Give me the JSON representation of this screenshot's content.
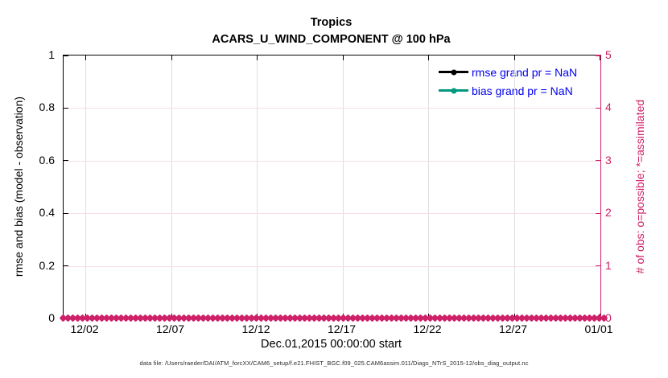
{
  "figure": {
    "title_line1": "Tropics",
    "title_line2": "ACARS_U_WIND_COMPONENT @ 100 hPa",
    "xlabel": "Dec.01,2015 00:00:00 start",
    "ylabel_left": "rmse and bias (model - observation)",
    "ylabel_right": "# of obs: o=possible; *=assimilated",
    "footer": "data file: /Users/raeder/DAI/ATM_forcXX/CAM6_setup/f.e21.FHIST_BGC.f09_025.CAM6assim.011/Diags_NTrS_2015-12/obs_diag_output.nc"
  },
  "legend": {
    "items": [
      {
        "label": "rmse grand pr = NaN",
        "line_color": "#000000"
      },
      {
        "label": "bias grand pr = NaN",
        "line_color": "#009980"
      }
    ],
    "text_color": "#0000EE"
  },
  "colors": {
    "accent_pink": "#CE2168",
    "teal": "#009980",
    "legend_text_blue": "#0000EE",
    "grid_vertical": "#DEDEDE",
    "grid_horizontal": "#F6DDE9",
    "axis_black": "#000000"
  },
  "chart_data": {
    "type": "line",
    "title": "Tropics",
    "subtitle": "ACARS_U_WIND_COMPONENT @ 100 hPa",
    "xlabel": "Dec.01,2015 00:00:00 start",
    "x_tick_labels": [
      "12/02",
      "12/07",
      "12/12",
      "12/17",
      "12/22",
      "12/27",
      "01/01"
    ],
    "y_left": {
      "label": "rmse and bias (model - observation)",
      "tick_labels": [
        "0",
        "0.2",
        "0.4",
        "0.6",
        "0.8",
        "1"
      ],
      "lim": [
        0,
        1
      ]
    },
    "y_right": {
      "label": "# of obs: o=possible; *=assimilated",
      "tick_labels": [
        "0",
        "1",
        "2",
        "3",
        "4",
        "5"
      ],
      "lim": [
        0,
        5
      ],
      "color": "#CE2168"
    },
    "grid": true,
    "legend_position": "top-right-inside",
    "series": [
      {
        "name": "rmse",
        "grand_value": "NaN",
        "color": "#000000",
        "marker": "filled-circle",
        "values": []
      },
      {
        "name": "bias",
        "grand_value": "NaN",
        "color": "#009980",
        "marker": "filled-circle",
        "values": []
      },
      {
        "name": "obs_assimilated_count",
        "axis": "right",
        "marker": "x",
        "color": "#CE2168",
        "constant_value": 0,
        "n_points": 113
      }
    ]
  }
}
